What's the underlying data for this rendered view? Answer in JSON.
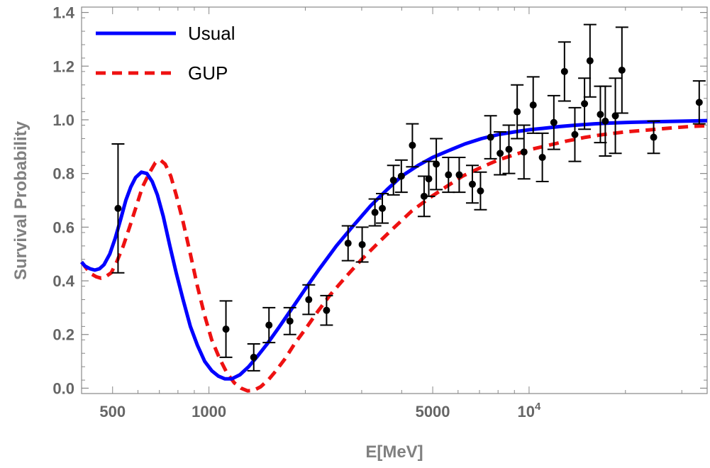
{
  "chart_data": {
    "type": "line",
    "xlabel": "E[MeV]",
    "ylabel": "Survival Probability",
    "x_scale": "log",
    "xlim": [
      400,
      36000
    ],
    "ylim": [
      -0.02,
      1.42
    ],
    "x_ticks": [
      {
        "value": 500,
        "label": "500"
      },
      {
        "value": 1000,
        "label": "1000"
      },
      {
        "value": 5000,
        "label": "5000"
      },
      {
        "value": 10000,
        "label": "10",
        "sup": "4"
      }
    ],
    "y_ticks": [
      {
        "value": 0.0,
        "label": "0.0"
      },
      {
        "value": 0.2,
        "label": "0.2"
      },
      {
        "value": 0.4,
        "label": "0.4"
      },
      {
        "value": 0.6,
        "label": "0.6"
      },
      {
        "value": 0.8,
        "label": "0.8"
      },
      {
        "value": 1.0,
        "label": "1.0"
      },
      {
        "value": 1.2,
        "label": "1.2"
      },
      {
        "value": 1.4,
        "label": "1.4"
      }
    ],
    "legend_position": "top-left",
    "series": [
      {
        "name": "Usual",
        "style": "solid",
        "color": "#0000ff",
        "points": [
          [
            400,
            0.47
          ],
          [
            410,
            0.455
          ],
          [
            425,
            0.445
          ],
          [
            440,
            0.44
          ],
          [
            455,
            0.445
          ],
          [
            470,
            0.46
          ],
          [
            490,
            0.5
          ],
          [
            510,
            0.56
          ],
          [
            530,
            0.63
          ],
          [
            550,
            0.7
          ],
          [
            570,
            0.75
          ],
          [
            590,
            0.785
          ],
          [
            615,
            0.805
          ],
          [
            640,
            0.8
          ],
          [
            665,
            0.77
          ],
          [
            690,
            0.72
          ],
          [
            720,
            0.64
          ],
          [
            755,
            0.53
          ],
          [
            790,
            0.43
          ],
          [
            830,
            0.33
          ],
          [
            875,
            0.23
          ],
          [
            920,
            0.16
          ],
          [
            970,
            0.1
          ],
          [
            1020,
            0.065
          ],
          [
            1070,
            0.045
          ],
          [
            1120,
            0.035
          ],
          [
            1180,
            0.035
          ],
          [
            1250,
            0.05
          ],
          [
            1330,
            0.08
          ],
          [
            1420,
            0.12
          ],
          [
            1520,
            0.165
          ],
          [
            1650,
            0.225
          ],
          [
            1800,
            0.29
          ],
          [
            2000,
            0.37
          ],
          [
            2200,
            0.44
          ],
          [
            2500,
            0.53
          ],
          [
            2800,
            0.6
          ],
          [
            3200,
            0.68
          ],
          [
            3600,
            0.74
          ],
          [
            4000,
            0.79
          ],
          [
            4500,
            0.83
          ],
          [
            5000,
            0.86
          ],
          [
            5600,
            0.885
          ],
          [
            6300,
            0.91
          ],
          [
            7100,
            0.93
          ],
          [
            8000,
            0.945
          ],
          [
            9000,
            0.955
          ],
          [
            10000,
            0.963
          ],
          [
            11000,
            0.968
          ],
          [
            12500,
            0.975
          ],
          [
            14000,
            0.98
          ],
          [
            16000,
            0.985
          ],
          [
            18000,
            0.988
          ],
          [
            20000,
            0.99
          ],
          [
            25000,
            0.993
          ],
          [
            30000,
            0.995
          ],
          [
            36000,
            0.997
          ]
        ]
      },
      {
        "name": "GUP",
        "style": "dashed",
        "color": "#ee1111",
        "points": [
          [
            400,
            0.47
          ],
          [
            415,
            0.445
          ],
          [
            430,
            0.425
          ],
          [
            445,
            0.415
          ],
          [
            460,
            0.41
          ],
          [
            475,
            0.415
          ],
          [
            495,
            0.43
          ],
          [
            515,
            0.47
          ],
          [
            540,
            0.53
          ],
          [
            565,
            0.6
          ],
          [
            590,
            0.67
          ],
          [
            620,
            0.75
          ],
          [
            650,
            0.8
          ],
          [
            680,
            0.84
          ],
          [
            705,
            0.85
          ],
          [
            730,
            0.835
          ],
          [
            760,
            0.79
          ],
          [
            790,
            0.72
          ],
          [
            830,
            0.62
          ],
          [
            875,
            0.5
          ],
          [
            920,
            0.38
          ],
          [
            970,
            0.27
          ],
          [
            1020,
            0.18
          ],
          [
            1080,
            0.11
          ],
          [
            1140,
            0.055
          ],
          [
            1200,
            0.02
          ],
          [
            1260,
            0.0
          ],
          [
            1320,
            -0.01
          ],
          [
            1380,
            -0.008
          ],
          [
            1450,
            0.005
          ],
          [
            1530,
            0.03
          ],
          [
            1620,
            0.065
          ],
          [
            1730,
            0.11
          ],
          [
            1850,
            0.165
          ],
          [
            2000,
            0.22
          ],
          [
            2200,
            0.29
          ],
          [
            2400,
            0.35
          ],
          [
            2700,
            0.42
          ],
          [
            3000,
            0.48
          ],
          [
            3400,
            0.545
          ],
          [
            3800,
            0.6
          ],
          [
            4300,
            0.66
          ],
          [
            4900,
            0.71
          ],
          [
            5500,
            0.75
          ],
          [
            6200,
            0.79
          ],
          [
            7000,
            0.82
          ],
          [
            8000,
            0.85
          ],
          [
            9000,
            0.87
          ],
          [
            10000,
            0.888
          ],
          [
            11500,
            0.905
          ],
          [
            13000,
            0.92
          ],
          [
            15000,
            0.935
          ],
          [
            17000,
            0.945
          ],
          [
            20000,
            0.955
          ],
          [
            24000,
            0.963
          ],
          [
            28000,
            0.97
          ],
          [
            32000,
            0.975
          ],
          [
            36000,
            0.978
          ]
        ]
      }
    ],
    "data_points": [
      {
        "x": 520,
        "y": 0.67,
        "err": 0.24
      },
      {
        "x": 1130,
        "y": 0.22,
        "err": 0.105
      },
      {
        "x": 1380,
        "y": 0.115,
        "err": 0.05
      },
      {
        "x": 1540,
        "y": 0.235,
        "err": 0.065
      },
      {
        "x": 1790,
        "y": 0.25,
        "err": 0.05
      },
      {
        "x": 2050,
        "y": 0.33,
        "err": 0.055
      },
      {
        "x": 2330,
        "y": 0.29,
        "err": 0.055
      },
      {
        "x": 2720,
        "y": 0.54,
        "err": 0.065
      },
      {
        "x": 3010,
        "y": 0.535,
        "err": 0.065
      },
      {
        "x": 3300,
        "y": 0.655,
        "err": 0.05
      },
      {
        "x": 3480,
        "y": 0.67,
        "err": 0.055
      },
      {
        "x": 3770,
        "y": 0.775,
        "err": 0.055
      },
      {
        "x": 3990,
        "y": 0.79,
        "err": 0.06
      },
      {
        "x": 4320,
        "y": 0.905,
        "err": 0.08
      },
      {
        "x": 4700,
        "y": 0.715,
        "err": 0.075
      },
      {
        "x": 4860,
        "y": 0.78,
        "err": 0.065
      },
      {
        "x": 5130,
        "y": 0.835,
        "err": 0.095
      },
      {
        "x": 5600,
        "y": 0.795,
        "err": 0.065
      },
      {
        "x": 6050,
        "y": 0.795,
        "err": 0.065
      },
      {
        "x": 6650,
        "y": 0.76,
        "err": 0.07
      },
      {
        "x": 7050,
        "y": 0.735,
        "err": 0.07
      },
      {
        "x": 7580,
        "y": 0.935,
        "err": 0.08
      },
      {
        "x": 8120,
        "y": 0.875,
        "err": 0.08
      },
      {
        "x": 8650,
        "y": 0.89,
        "err": 0.09
      },
      {
        "x": 9180,
        "y": 1.03,
        "err": 0.1
      },
      {
        "x": 9640,
        "y": 0.88,
        "err": 0.1
      },
      {
        "x": 10300,
        "y": 1.055,
        "err": 0.105
      },
      {
        "x": 11000,
        "y": 0.86,
        "err": 0.09
      },
      {
        "x": 11950,
        "y": 0.99,
        "err": 0.1
      },
      {
        "x": 12900,
        "y": 1.18,
        "err": 0.11
      },
      {
        "x": 13900,
        "y": 0.945,
        "err": 0.1
      },
      {
        "x": 14900,
        "y": 1.06,
        "err": 0.095
      },
      {
        "x": 15500,
        "y": 1.22,
        "err": 0.135
      },
      {
        "x": 16700,
        "y": 1.02,
        "err": 0.105
      },
      {
        "x": 17300,
        "y": 0.995,
        "err": 0.13
      },
      {
        "x": 18600,
        "y": 1.015,
        "err": 0.14
      },
      {
        "x": 19500,
        "y": 1.185,
        "err": 0.16
      },
      {
        "x": 24500,
        "y": 0.935,
        "err": 0.06
      },
      {
        "x": 34000,
        "y": 1.065,
        "err": 0.08
      }
    ]
  }
}
